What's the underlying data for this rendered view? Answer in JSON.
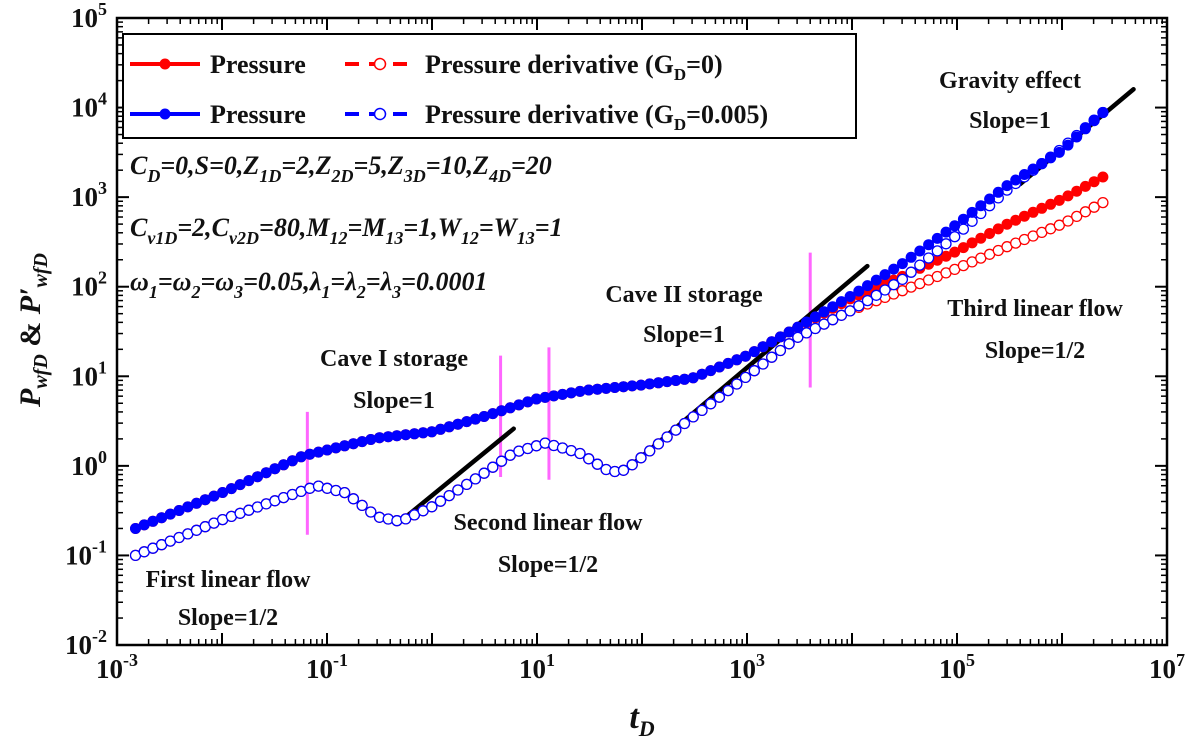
{
  "chart_data": {
    "type": "scatter",
    "xscale": "log",
    "yscale": "log",
    "xlim": [
      0.001,
      10000000
    ],
    "ylim": [
      0.01,
      100000
    ],
    "xlabel_main": "t",
    "xlabel_sub": "D",
    "ylabel": {
      "p1": "P",
      "p1_sub": "wfD",
      "amp": " & ",
      "p2": "P′",
      "p2_sub": "wfD"
    },
    "x_ticks": [
      {
        "value": 0.001,
        "base": "10",
        "exp": "-3"
      },
      {
        "value": 0.1,
        "base": "10",
        "exp": "-1"
      },
      {
        "value": 10,
        "base": "10",
        "exp": "1"
      },
      {
        "value": 1000,
        "base": "10",
        "exp": "3"
      },
      {
        "value": 100000,
        "base": "10",
        "exp": "5"
      },
      {
        "value": 10000000,
        "base": "10",
        "exp": "7"
      }
    ],
    "y_ticks": [
      {
        "value": 0.01,
        "base": "10",
        "exp": "-2"
      },
      {
        "value": 0.1,
        "base": "10",
        "exp": "-1"
      },
      {
        "value": 1,
        "base": "10",
        "exp": "0"
      },
      {
        "value": 10,
        "base": "10",
        "exp": "1"
      },
      {
        "value": 100,
        "base": "10",
        "exp": "2"
      },
      {
        "value": 1000,
        "base": "10",
        "exp": "3"
      },
      {
        "value": 10000,
        "base": "10",
        "exp": "4"
      },
      {
        "value": 100000,
        "base": "10",
        "exp": "5"
      }
    ],
    "legend": [
      {
        "label": "Pressure",
        "color": "#ff0000",
        "marker": "filled"
      },
      {
        "label": "Pressure derivative (G",
        "sub": "D",
        "tail": "=0)",
        "color": "#ff0000",
        "marker": "open"
      },
      {
        "label": "Pressure",
        "color": "#0000ff",
        "marker": "filled"
      },
      {
        "label": "Pressure derivative (G",
        "sub": "D",
        "tail": "=0.005)",
        "color": "#0000ff",
        "marker": "open"
      }
    ],
    "series": [
      {
        "name": "Pressure (GD=0)",
        "color": "#ff0000",
        "marker": "filled",
        "points": [
          [
            0.0015,
            0.2
          ],
          [
            0.01,
            0.5
          ],
          [
            0.06,
            1.3
          ],
          [
            0.3,
            2.05
          ],
          [
            1,
            2.4
          ],
          [
            3,
            3.5
          ],
          [
            10,
            5.6
          ],
          [
            30,
            7
          ],
          [
            100,
            8
          ],
          [
            300,
            9.5
          ],
          [
            1000,
            17
          ],
          [
            3000,
            35
          ],
          [
            10000,
            75
          ],
          [
            30000,
            130
          ],
          [
            100000,
            250
          ],
          [
            300000,
            500
          ],
          [
            1000000,
            950
          ],
          [
            2500000,
            1700
          ]
        ]
      },
      {
        "name": "Pressure derivative (GD=0)",
        "color": "#ff0000",
        "marker": "open",
        "points": [
          [
            0.0015,
            0.1
          ],
          [
            0.01,
            0.25
          ],
          [
            0.08,
            0.6
          ],
          [
            0.15,
            0.5
          ],
          [
            0.3,
            0.27
          ],
          [
            0.5,
            0.24
          ],
          [
            1,
            0.35
          ],
          [
            3,
            0.8
          ],
          [
            6,
            1.4
          ],
          [
            12,
            1.8
          ],
          [
            25,
            1.4
          ],
          [
            50,
            0.85
          ],
          [
            70,
            0.9
          ],
          [
            200,
            2.4
          ],
          [
            1000,
            10
          ],
          [
            3000,
            27
          ],
          [
            10000,
            55
          ],
          [
            30000,
            90
          ],
          [
            100000,
            160
          ],
          [
            300000,
            280
          ],
          [
            1000000,
            500
          ],
          [
            2500000,
            880
          ]
        ]
      },
      {
        "name": "Pressure (GD=0.005)",
        "color": "#0000ff",
        "marker": "filled",
        "points": [
          [
            0.0015,
            0.2
          ],
          [
            0.01,
            0.5
          ],
          [
            0.06,
            1.3
          ],
          [
            0.3,
            2.05
          ],
          [
            1,
            2.4
          ],
          [
            3,
            3.5
          ],
          [
            10,
            5.6
          ],
          [
            30,
            7
          ],
          [
            100,
            8
          ],
          [
            300,
            9.5
          ],
          [
            1000,
            17
          ],
          [
            3000,
            35
          ],
          [
            10000,
            80
          ],
          [
            30000,
            180
          ],
          [
            100000,
            500
          ],
          [
            300000,
            1350
          ],
          [
            1000000,
            3300
          ],
          [
            2500000,
            9000
          ]
        ]
      },
      {
        "name": "Pressure derivative (GD=0.005)",
        "color": "#0000ff",
        "marker": "open",
        "points": [
          [
            0.0015,
            0.1
          ],
          [
            0.01,
            0.25
          ],
          [
            0.08,
            0.6
          ],
          [
            0.15,
            0.5
          ],
          [
            0.3,
            0.27
          ],
          [
            0.5,
            0.24
          ],
          [
            1,
            0.35
          ],
          [
            3,
            0.8
          ],
          [
            6,
            1.4
          ],
          [
            12,
            1.8
          ],
          [
            25,
            1.4
          ],
          [
            50,
            0.85
          ],
          [
            70,
            0.9
          ],
          [
            200,
            2.4
          ],
          [
            1000,
            10
          ],
          [
            3000,
            27
          ],
          [
            10000,
            55
          ],
          [
            30000,
            120
          ],
          [
            100000,
            380
          ],
          [
            300000,
            1200
          ],
          [
            1000000,
            3500
          ],
          [
            2500000,
            9000
          ]
        ]
      }
    ],
    "slope_lines": [
      {
        "from": [
          0.5,
          0.24
        ],
        "to": [
          6,
          2.6
        ]
      },
      {
        "from": [
          70,
          0.9
        ],
        "to": [
          14000,
          170
        ]
      },
      {
        "from": [
          400000,
          1400
        ],
        "to": [
          4800000,
          16000
        ]
      }
    ],
    "flow_markers": [
      {
        "x": 0.065,
        "ylow": 0.17,
        "yhigh": 4.0
      },
      {
        "x": 4.5,
        "ylow": 0.75,
        "yhigh": 17
      },
      {
        "x": 13,
        "ylow": 0.7,
        "yhigh": 21
      },
      {
        "x": 4000,
        "ylow": 7.5,
        "yhigh": 240
      }
    ],
    "marker_color": "#ff66ff",
    "annotations": [
      {
        "id": "first-linear-flow",
        "lines": [
          "First linear flow",
          "Slope=1/2"
        ]
      },
      {
        "id": "cave-1-storage",
        "lines": [
          "Cave I storage",
          "Slope=1"
        ]
      },
      {
        "id": "second-linear-flow",
        "lines": [
          "Second linear flow",
          "Slope=1/2"
        ]
      },
      {
        "id": "cave-2-storage",
        "lines": [
          "Cave II storage",
          "Slope=1"
        ]
      },
      {
        "id": "third-linear-flow",
        "lines": [
          "Third linear flow",
          "Slope=1/2"
        ]
      },
      {
        "id": "gravity-effect",
        "lines": [
          "Gravity effect",
          "Slope=1"
        ]
      }
    ],
    "params": [
      [
        {
          "t": "C"
        },
        {
          "t": "D",
          "sub": true
        },
        {
          "t": "=0,S=0,Z"
        },
        {
          "t": "1D",
          "sub": true
        },
        {
          "t": "=2,Z"
        },
        {
          "t": "2D",
          "sub": true
        },
        {
          "t": "=5,Z"
        },
        {
          "t": "3D",
          "sub": true
        },
        {
          "t": "=10,Z"
        },
        {
          "t": "4D",
          "sub": true
        },
        {
          "t": "=20"
        }
      ],
      [
        {
          "t": "C"
        },
        {
          "t": "v1D",
          "sub": true
        },
        {
          "t": "=2,C"
        },
        {
          "t": "v2D",
          "sub": true
        },
        {
          "t": "=80,M"
        },
        {
          "t": "12",
          "sub": true
        },
        {
          "t": "=M"
        },
        {
          "t": "13",
          "sub": true
        },
        {
          "t": "=1,W"
        },
        {
          "t": "12",
          "sub": true
        },
        {
          "t": "=W"
        },
        {
          "t": "13",
          "sub": true
        },
        {
          "t": "=1"
        }
      ],
      [
        {
          "t": "ω"
        },
        {
          "t": "1",
          "sub": true
        },
        {
          "t": "=ω"
        },
        {
          "t": "2",
          "sub": true
        },
        {
          "t": "=ω"
        },
        {
          "t": "3",
          "sub": true
        },
        {
          "t": "=0.05,λ"
        },
        {
          "t": "1",
          "sub": true
        },
        {
          "t": "=λ"
        },
        {
          "t": "2",
          "sub": true
        },
        {
          "t": "=λ"
        },
        {
          "t": "3",
          "sub": true
        },
        {
          "t": "=0.0001"
        }
      ]
    ]
  }
}
